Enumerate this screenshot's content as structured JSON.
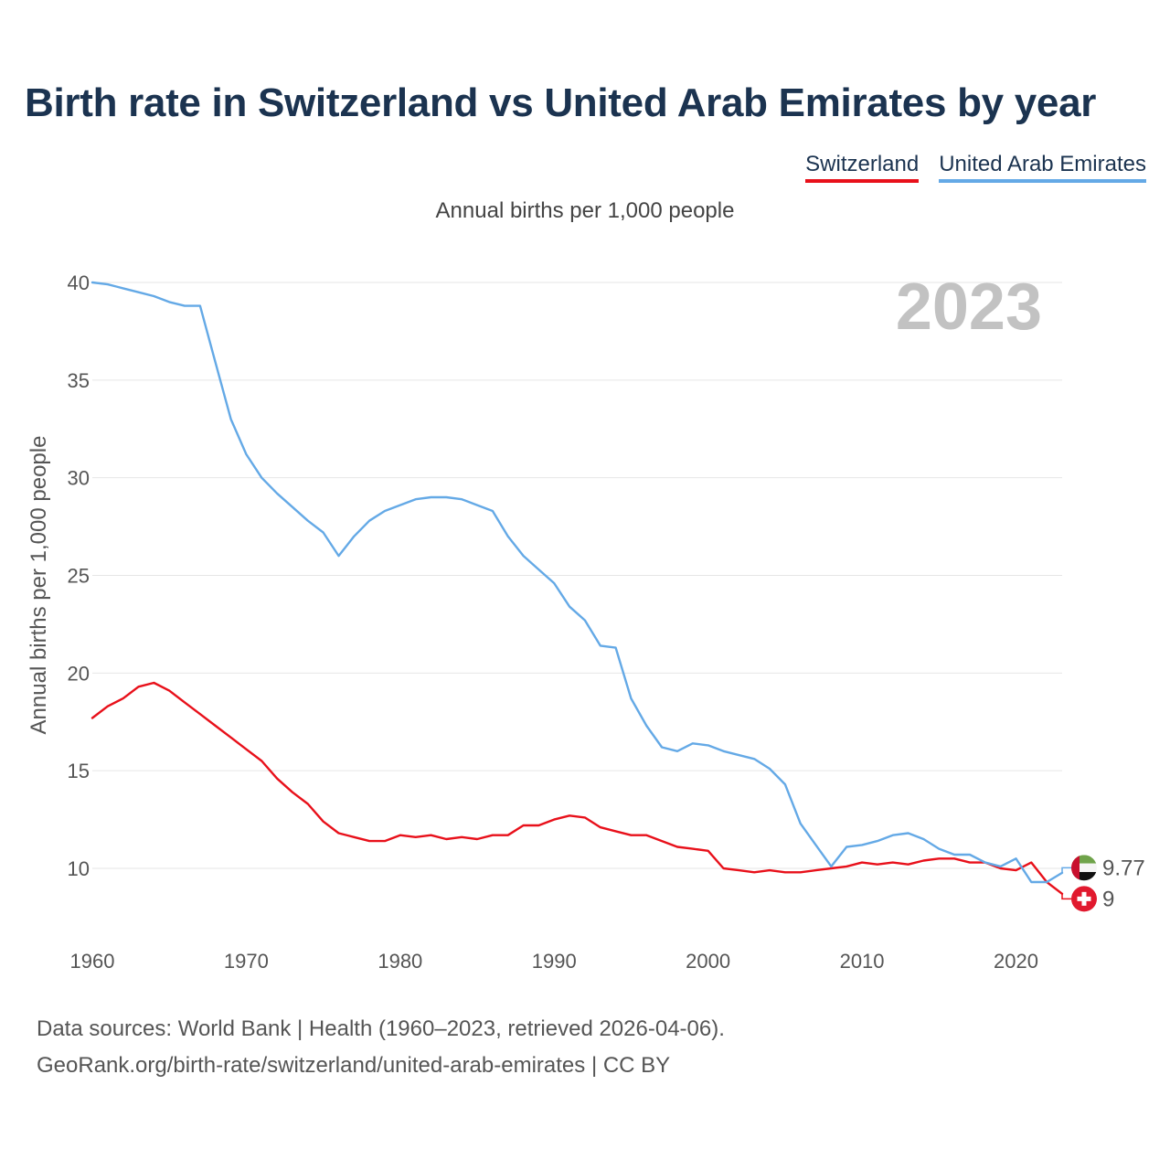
{
  "header": {
    "title": "Birth rate in Switzerland vs United Arab Emirates by year",
    "subtitle": "Annual births per 1,000 people"
  },
  "legend": {
    "items": [
      {
        "label": "Switzerland",
        "color": "#e8101a"
      },
      {
        "label": "United Arab Emirates",
        "color": "#64a9e6"
      }
    ]
  },
  "footer": {
    "line1": "Data sources: World Bank | Health (1960–2023, retrieved 2026-04-06).",
    "line2": "GeoRank.org/birth-rate/switzerland/united-arab-emirates | CC BY"
  },
  "chart_data": {
    "type": "line",
    "title": "Birth rate in Switzerland vs United Arab Emirates by year",
    "ylabel": "Annual births per 1,000 people",
    "xlabel": "",
    "year_label": "2023",
    "xlim": [
      1960,
      2023
    ],
    "ylim": [
      7,
      40
    ],
    "yticks": [
      10,
      15,
      20,
      25,
      30,
      35,
      40
    ],
    "xticks": [
      1960,
      1970,
      1980,
      1990,
      2000,
      2010,
      2020
    ],
    "grid": true,
    "x": [
      1960,
      1961,
      1962,
      1963,
      1964,
      1965,
      1966,
      1967,
      1968,
      1969,
      1970,
      1971,
      1972,
      1973,
      1974,
      1975,
      1976,
      1977,
      1978,
      1979,
      1980,
      1981,
      1982,
      1983,
      1984,
      1985,
      1986,
      1987,
      1988,
      1989,
      1990,
      1991,
      1992,
      1993,
      1994,
      1995,
      1996,
      1997,
      1998,
      1999,
      2000,
      2001,
      2002,
      2003,
      2004,
      2005,
      2006,
      2007,
      2008,
      2009,
      2010,
      2011,
      2012,
      2013,
      2014,
      2015,
      2016,
      2017,
      2018,
      2019,
      2020,
      2021,
      2022,
      2023
    ],
    "series": [
      {
        "name": "Switzerland",
        "color": "#e8101a",
        "end_label": "9",
        "values": [
          17.7,
          18.3,
          18.7,
          19.3,
          19.5,
          19.1,
          18.5,
          17.9,
          17.3,
          16.7,
          16.1,
          15.5,
          14.6,
          13.9,
          13.3,
          12.4,
          11.8,
          11.6,
          11.4,
          11.4,
          11.7,
          11.6,
          11.7,
          11.5,
          11.6,
          11.5,
          11.7,
          11.7,
          12.2,
          12.2,
          12.5,
          12.7,
          12.6,
          12.1,
          11.9,
          11.7,
          11.7,
          11.4,
          11.1,
          11.0,
          10.9,
          10.0,
          9.9,
          9.8,
          9.9,
          9.8,
          9.8,
          9.9,
          10.0,
          10.1,
          10.3,
          10.2,
          10.3,
          10.2,
          10.4,
          10.5,
          10.5,
          10.3,
          10.3,
          10.0,
          9.9,
          10.3,
          9.3,
          8.7
        ]
      },
      {
        "name": "United Arab Emirates",
        "color": "#64a9e6",
        "end_label": "9.77",
        "values": [
          40.0,
          39.9,
          39.7,
          39.5,
          39.3,
          39.0,
          38.8,
          38.8,
          35.9,
          33.0,
          31.2,
          30.0,
          29.2,
          28.5,
          27.8,
          27.2,
          26.0,
          27.0,
          27.8,
          28.3,
          28.6,
          28.9,
          29.0,
          29.0,
          28.9,
          28.6,
          28.3,
          27.0,
          26.0,
          25.3,
          24.6,
          23.4,
          22.7,
          21.4,
          21.3,
          18.7,
          17.3,
          16.2,
          16.0,
          16.4,
          16.3,
          16.0,
          15.8,
          15.6,
          15.1,
          14.3,
          12.3,
          11.2,
          10.1,
          11.1,
          11.2,
          11.4,
          11.7,
          11.8,
          11.5,
          11.0,
          10.7,
          10.7,
          10.3,
          10.1,
          10.5,
          9.3,
          9.3,
          9.77
        ]
      }
    ]
  }
}
